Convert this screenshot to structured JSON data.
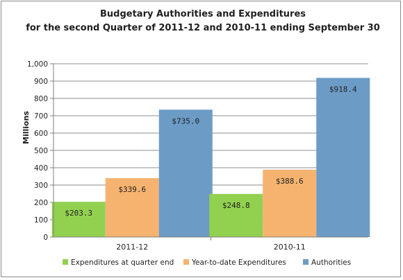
{
  "chart_data": {
    "type": "bar",
    "title_lines": [
      "Budgetary Authorities and Expenditures",
      "for the second Quarter of 2011-12 and 2010-11 ending September 30"
    ],
    "xlabel": "",
    "ylabel": "Millions",
    "ylim": [
      0,
      1000
    ],
    "yticks": [
      "0",
      "100",
      "200",
      "300",
      "400",
      "500",
      "600",
      "700",
      "800",
      "900",
      "1,000"
    ],
    "categories": [
      "2011-12",
      "2010-11"
    ],
    "series": [
      {
        "name": "Expenditures at quarter end",
        "values": [
          203.3,
          248.8
        ],
        "labels": [
          "$203.3",
          "$248.8"
        ],
        "color": "#92d050"
      },
      {
        "name": "Year-to-date Expenditures",
        "values": [
          339.6,
          388.6
        ],
        "labels": [
          "$339.6",
          "$388.6"
        ],
        "color": "#f5b36f"
      },
      {
        "name": "Authorities",
        "values": [
          735.0,
          918.4
        ],
        "labels": [
          "$735.0",
          "$918.4"
        ],
        "color": "#6c9bc6"
      }
    ],
    "grid": true,
    "legend_position": "bottom"
  }
}
